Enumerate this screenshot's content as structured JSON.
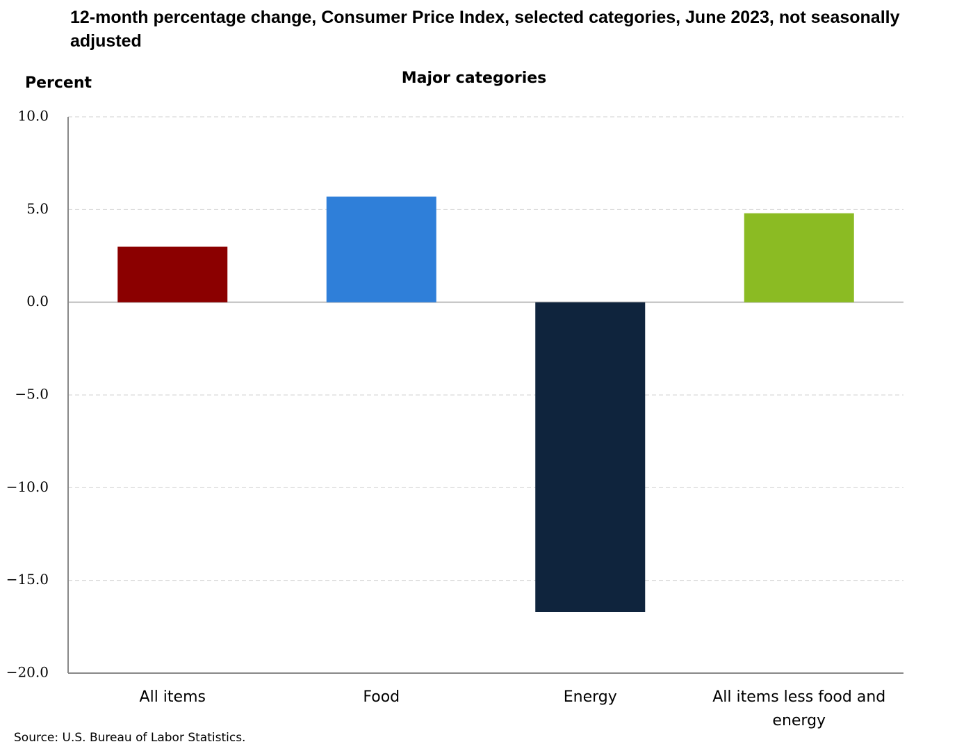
{
  "chart_data": {
    "type": "bar",
    "title": "12-month percentage change, Consumer Price Index, selected categories, June 2023, not seasonally adjusted",
    "subtitle": "Major categories",
    "y_label": "Percent",
    "source": "Source: U.S. Bureau of Labor Statistics.",
    "categories": [
      "All items",
      "Food",
      "Energy",
      "All items less food and energy"
    ],
    "values": [
      3.0,
      5.7,
      -16.7,
      4.8
    ],
    "colors": [
      "#8b0000",
      "#2f7fd9",
      "#0f243d",
      "#8bbb23"
    ],
    "ylim": [
      -20,
      10
    ],
    "yticks": [
      {
        "value": 10,
        "label": "10.0"
      },
      {
        "value": 5,
        "label": "5.0"
      },
      {
        "value": 0,
        "label": "0.0"
      },
      {
        "value": -5,
        "label": "−5.0"
      },
      {
        "value": -10,
        "label": "−10.0"
      },
      {
        "value": -15,
        "label": "−15.0"
      },
      {
        "value": -20,
        "label": "−20.0"
      }
    ],
    "grid": true
  }
}
